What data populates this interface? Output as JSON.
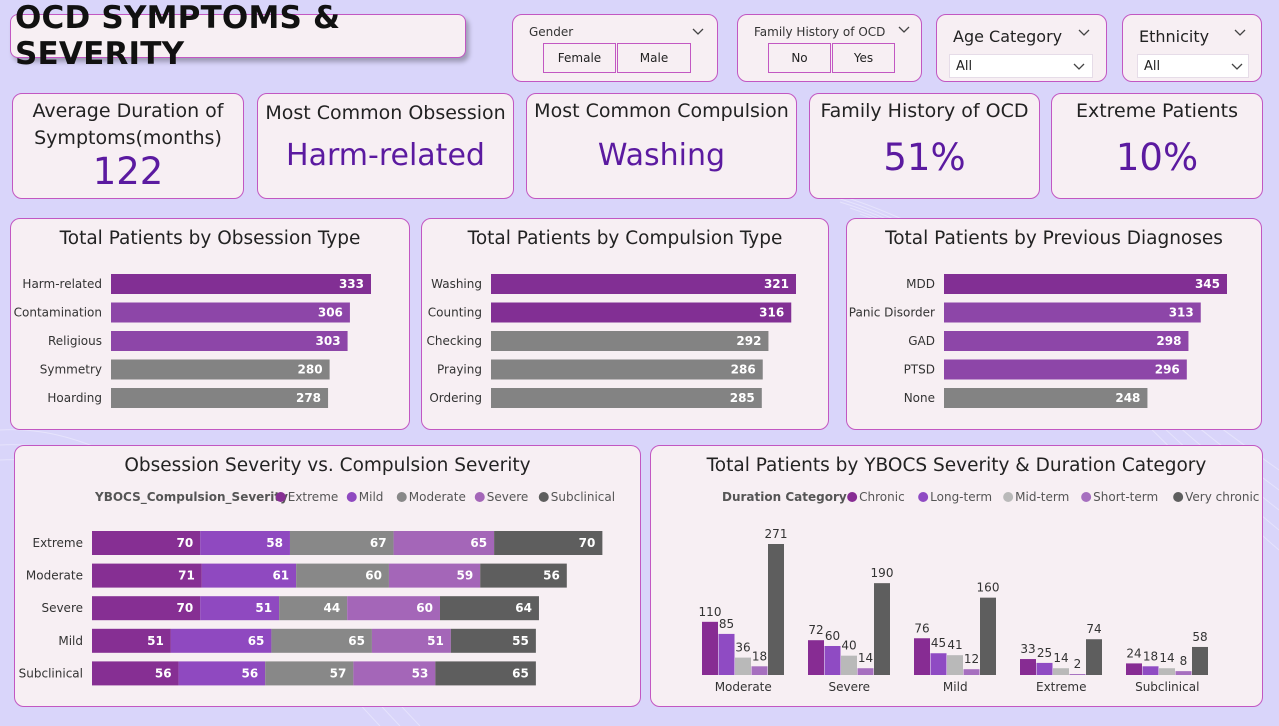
{
  "title": "OCD SYMPTOMS & SEVERITY",
  "filters": {
    "gender": {
      "label": "Gender",
      "options": [
        "Female",
        "Male"
      ]
    },
    "family_history": {
      "label": "Family History of OCD",
      "options": [
        "No",
        "Yes"
      ]
    },
    "age_category": {
      "label": "Age Category",
      "value": "All"
    },
    "ethnicity": {
      "label": "Ethnicity",
      "value": "All"
    }
  },
  "kpis": {
    "avg_duration": {
      "title_line1": "Average Duration of",
      "title_line2": "Symptoms(months)",
      "value": "122"
    },
    "common_obsession": {
      "title": "Most Common Obsession",
      "value": "Harm-related"
    },
    "common_compulsion": {
      "title": "Most Common Compulsion",
      "value": "Washing"
    },
    "family_history": {
      "title": "Family History of OCD",
      "value": "51%"
    },
    "extreme": {
      "title": "Extreme Patients",
      "value": "10%"
    }
  },
  "colors": {
    "purple_dark": "#822f94",
    "purple_mid": "#8d46a8",
    "grey_bar": "#838383",
    "extreme": "#862f93",
    "mild": "#8f49c0",
    "moderate": "#888888",
    "severe": "#a466b8",
    "subclinical": "#5e5e5e",
    "chronic": "#872c93",
    "long_term": "#8f4bc3",
    "mid_term": "#b9b9b9",
    "short_term": "#a66fbf",
    "very_chronic": "#5e5e5e",
    "kpi_value": "#5b1aa0"
  },
  "chart_data": [
    {
      "type": "bar",
      "orientation": "horizontal",
      "title": "Total Patients by Obsession Type",
      "categories": [
        "Harm-related",
        "Contamination",
        "Religious",
        "Symmetry",
        "Hoarding"
      ],
      "values": [
        333,
        306,
        303,
        280,
        278
      ],
      "value_labels": [
        "333",
        "306",
        "303",
        "280",
        "278"
      ]
    },
    {
      "type": "bar",
      "orientation": "horizontal",
      "title": "Total Patients by Compulsion Type",
      "categories": [
        "Washing",
        "Counting",
        "Checking",
        "Praying",
        "Ordering"
      ],
      "values": [
        321,
        316,
        292,
        286,
        285
      ],
      "value_labels": [
        "321",
        "316",
        "292",
        "286",
        "285"
      ]
    },
    {
      "type": "bar",
      "orientation": "horizontal",
      "title": "Total Patients by Previous Diagnoses",
      "categories": [
        "MDD",
        "Panic Disorder",
        "GAD",
        "PTSD",
        "None"
      ],
      "values": [
        345,
        313,
        298,
        296,
        248
      ],
      "value_labels": [
        "345",
        "313",
        "298",
        "296",
        "248"
      ]
    },
    {
      "type": "bar",
      "orientation": "horizontal",
      "stacked": true,
      "title": "Obsession Severity vs. Compulsion Severity",
      "legend_title": "YBOCS_Compulsion_Severity",
      "legend_placement": "top",
      "categories": [
        "Extreme",
        "Moderate",
        "Severe",
        "Mild",
        "Subclinical"
      ],
      "series": [
        {
          "name": "Extreme",
          "values": [
            70,
            71,
            70,
            51,
            56
          ]
        },
        {
          "name": "Mild",
          "values": [
            58,
            61,
            51,
            65,
            56
          ]
        },
        {
          "name": "Moderate",
          "values": [
            67,
            60,
            44,
            65,
            57
          ]
        },
        {
          "name": "Severe",
          "values": [
            65,
            59,
            60,
            51,
            53
          ]
        },
        {
          "name": "Subclinical",
          "values": [
            70,
            56,
            64,
            55,
            65
          ]
        }
      ]
    },
    {
      "type": "bar",
      "orientation": "vertical",
      "grouped": true,
      "title": "Total Patients by YBOCS Severity & Duration Category",
      "legend_title": "Duration Category",
      "legend_placement": "top",
      "categories": [
        "Moderate",
        "Severe",
        "Mild",
        "Extreme",
        "Subclinical"
      ],
      "series": [
        {
          "name": "Chronic",
          "values": [
            110,
            72,
            76,
            33,
            24
          ]
        },
        {
          "name": "Long-term",
          "values": [
            85,
            60,
            45,
            25,
            18
          ]
        },
        {
          "name": "Mid-term",
          "values": [
            36,
            40,
            41,
            14,
            14
          ]
        },
        {
          "name": "Short-term",
          "values": [
            18,
            14,
            12,
            2,
            8
          ]
        },
        {
          "name": "Very chronic",
          "values": [
            271,
            190,
            160,
            74,
            58
          ]
        }
      ]
    }
  ]
}
